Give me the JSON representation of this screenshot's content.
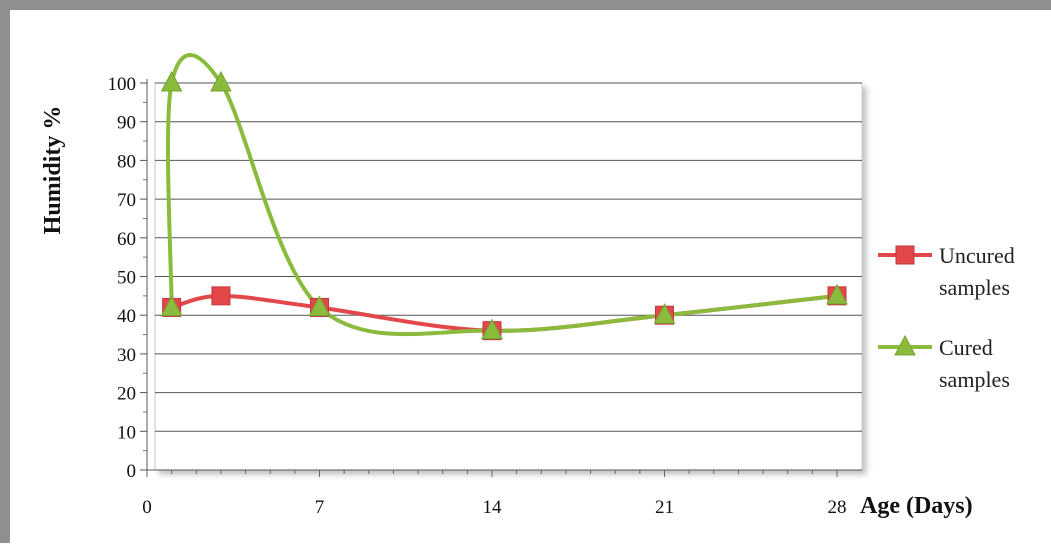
{
  "chart_data": {
    "type": "line",
    "xlabel": "Age (Days)",
    "ylabel": "Humidity %",
    "xlim": [
      0,
      28
    ],
    "ylim": [
      0,
      100
    ],
    "xticks": [
      0,
      7,
      14,
      21,
      28
    ],
    "yticks": [
      0,
      10,
      20,
      30,
      40,
      50,
      60,
      70,
      80,
      90,
      100
    ],
    "grid": "horizontal",
    "legend_position": "right",
    "series": [
      {
        "name_lines": [
          "Uncured",
          "samples"
        ],
        "color": "#e2474a",
        "marker": "square",
        "points": [
          [
            1,
            42
          ],
          [
            3,
            45
          ],
          [
            7,
            42
          ],
          [
            14,
            36
          ],
          [
            21,
            40
          ],
          [
            28,
            45
          ]
        ]
      },
      {
        "name_lines": [
          "Cured",
          "samples"
        ],
        "color": "#8bbb3c",
        "marker": "triangle",
        "points": [
          [
            1,
            42
          ],
          [
            1,
            100
          ],
          [
            3,
            100
          ],
          [
            7,
            42
          ],
          [
            14,
            36
          ],
          [
            21,
            40
          ],
          [
            28,
            45
          ]
        ]
      }
    ]
  }
}
